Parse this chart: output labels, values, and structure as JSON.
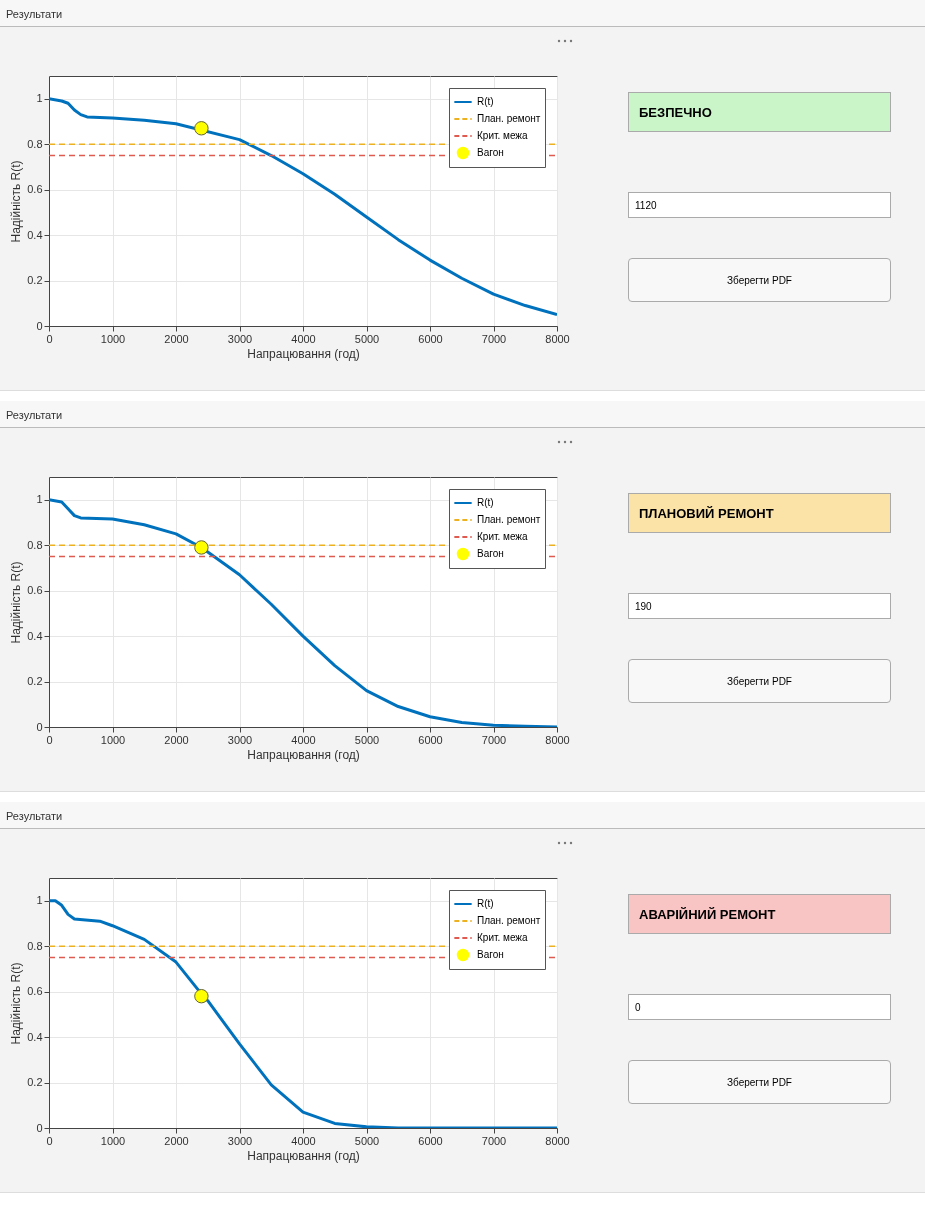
{
  "chart_data": [
    {
      "type": "line",
      "title": "Результати",
      "xlabel": "Напрацювання (год)",
      "ylabel": "Надійність R(t)",
      "xlim": [
        0,
        8000
      ],
      "ylim": [
        0,
        1.1
      ],
      "xticks": [
        0,
        1000,
        2000,
        3000,
        4000,
        5000,
        6000,
        7000,
        8000
      ],
      "yticks": [
        0,
        0.2,
        0.4,
        0.6,
        0.8,
        1
      ],
      "grid": true,
      "legend": "top right",
      "series": [
        {
          "name": "R(t)",
          "color": "#0072bd",
          "x": [
            0,
            200,
            300,
            400,
            500,
            600,
            1000,
            1500,
            2000,
            3000,
            3500,
            4000,
            4500,
            5000,
            5500,
            6000,
            6500,
            7000,
            7500,
            8000
          ],
          "values": [
            1,
            0.99,
            0.98,
            0.95,
            0.93,
            0.92,
            0.915,
            0.905,
            0.89,
            0.82,
            0.75,
            0.67,
            0.58,
            0.48,
            0.38,
            0.29,
            0.21,
            0.14,
            0.09,
            0.05
          ]
        },
        {
          "name": "Вагон",
          "type": "scatter",
          "marker": "circle",
          "color": "#ffff00",
          "x": [
            2400
          ],
          "values": [
            0.87
          ]
        }
      ],
      "ref_lines": [
        {
          "axis": "y",
          "value": 0.8,
          "label": "План. ремонт",
          "color": "#edb120",
          "line_style": "dashed"
        },
        {
          "axis": "y",
          "value": 0.75,
          "label": "Крит. межа",
          "color": "#e05a50",
          "line_style": "dashed"
        }
      ],
      "annotations": [
        "БЕЗПЕЧНО",
        "1120",
        "Зберегти PDF"
      ]
    },
    {
      "type": "line",
      "title": "Результати",
      "xlabel": "Напрацювання (год)",
      "ylabel": "Надійність R(t)",
      "xlim": [
        0,
        8000
      ],
      "ylim": [
        0,
        1.1
      ],
      "xticks": [
        0,
        1000,
        2000,
        3000,
        4000,
        5000,
        6000,
        7000,
        8000
      ],
      "yticks": [
        0,
        0.2,
        0.4,
        0.6,
        0.8,
        1
      ],
      "grid": true,
      "legend": "top right",
      "series": [
        {
          "name": "R(t)",
          "color": "#0072bd",
          "x": [
            0,
            200,
            300,
            400,
            500,
            1000,
            1500,
            2000,
            2400,
            2500,
            3000,
            3500,
            4000,
            4500,
            5000,
            5500,
            6000,
            6500,
            7000,
            7500,
            8000
          ],
          "values": [
            1,
            0.99,
            0.96,
            0.93,
            0.92,
            0.915,
            0.89,
            0.85,
            0.79,
            0.77,
            0.67,
            0.54,
            0.4,
            0.27,
            0.16,
            0.09,
            0.045,
            0.02,
            0.008,
            0.003,
            0
          ]
        },
        {
          "name": "Вагон",
          "type": "scatter",
          "marker": "circle",
          "color": "#ffff00",
          "x": [
            2400
          ],
          "values": [
            0.79
          ]
        }
      ],
      "ref_lines": [
        {
          "axis": "y",
          "value": 0.8,
          "label": "План. ремонт",
          "color": "#edb120",
          "line_style": "dashed"
        },
        {
          "axis": "y",
          "value": 0.75,
          "label": "Крит. межа",
          "color": "#e05a50",
          "line_style": "dashed"
        }
      ],
      "annotations": [
        "ПЛАНОВИЙ РЕМОНТ",
        "190",
        "Зберегти PDF"
      ]
    },
    {
      "type": "line",
      "title": "Результати",
      "xlabel": "Напрацювання (год)",
      "ylabel": "Надійність R(t)",
      "xlim": [
        0,
        8000
      ],
      "ylim": [
        0,
        1.1
      ],
      "xticks": [
        0,
        1000,
        2000,
        3000,
        4000,
        5000,
        6000,
        7000,
        8000
      ],
      "yticks": [
        0,
        0.2,
        0.4,
        0.6,
        0.8,
        1
      ],
      "grid": true,
      "legend": "top right",
      "series": [
        {
          "name": "R(t)",
          "color": "#0072bd",
          "x": [
            0,
            100,
            200,
            300,
            400,
            800,
            1000,
            1500,
            2000,
            2400,
            2500,
            3000,
            3500,
            4000,
            4500,
            5000,
            5500,
            6000,
            7000,
            8000
          ],
          "values": [
            1,
            1,
            0.98,
            0.94,
            0.92,
            0.91,
            0.89,
            0.83,
            0.73,
            0.59,
            0.56,
            0.37,
            0.19,
            0.07,
            0.02,
            0.005,
            0,
            0,
            0,
            0
          ]
        },
        {
          "name": "Вагон",
          "type": "scatter",
          "marker": "circle",
          "color": "#ffff00",
          "x": [
            2400
          ],
          "values": [
            0.58
          ]
        }
      ],
      "ref_lines": [
        {
          "axis": "y",
          "value": 0.8,
          "label": "План. ремонт",
          "color": "#edb120",
          "line_style": "dashed"
        },
        {
          "axis": "y",
          "value": 0.75,
          "label": "Крит. межа",
          "color": "#e05a50",
          "line_style": "dashed"
        }
      ],
      "annotations": [
        "АВАРІЙНИЙ РЕМОНТ",
        "0",
        "Зберегти PDF"
      ]
    }
  ]
}
